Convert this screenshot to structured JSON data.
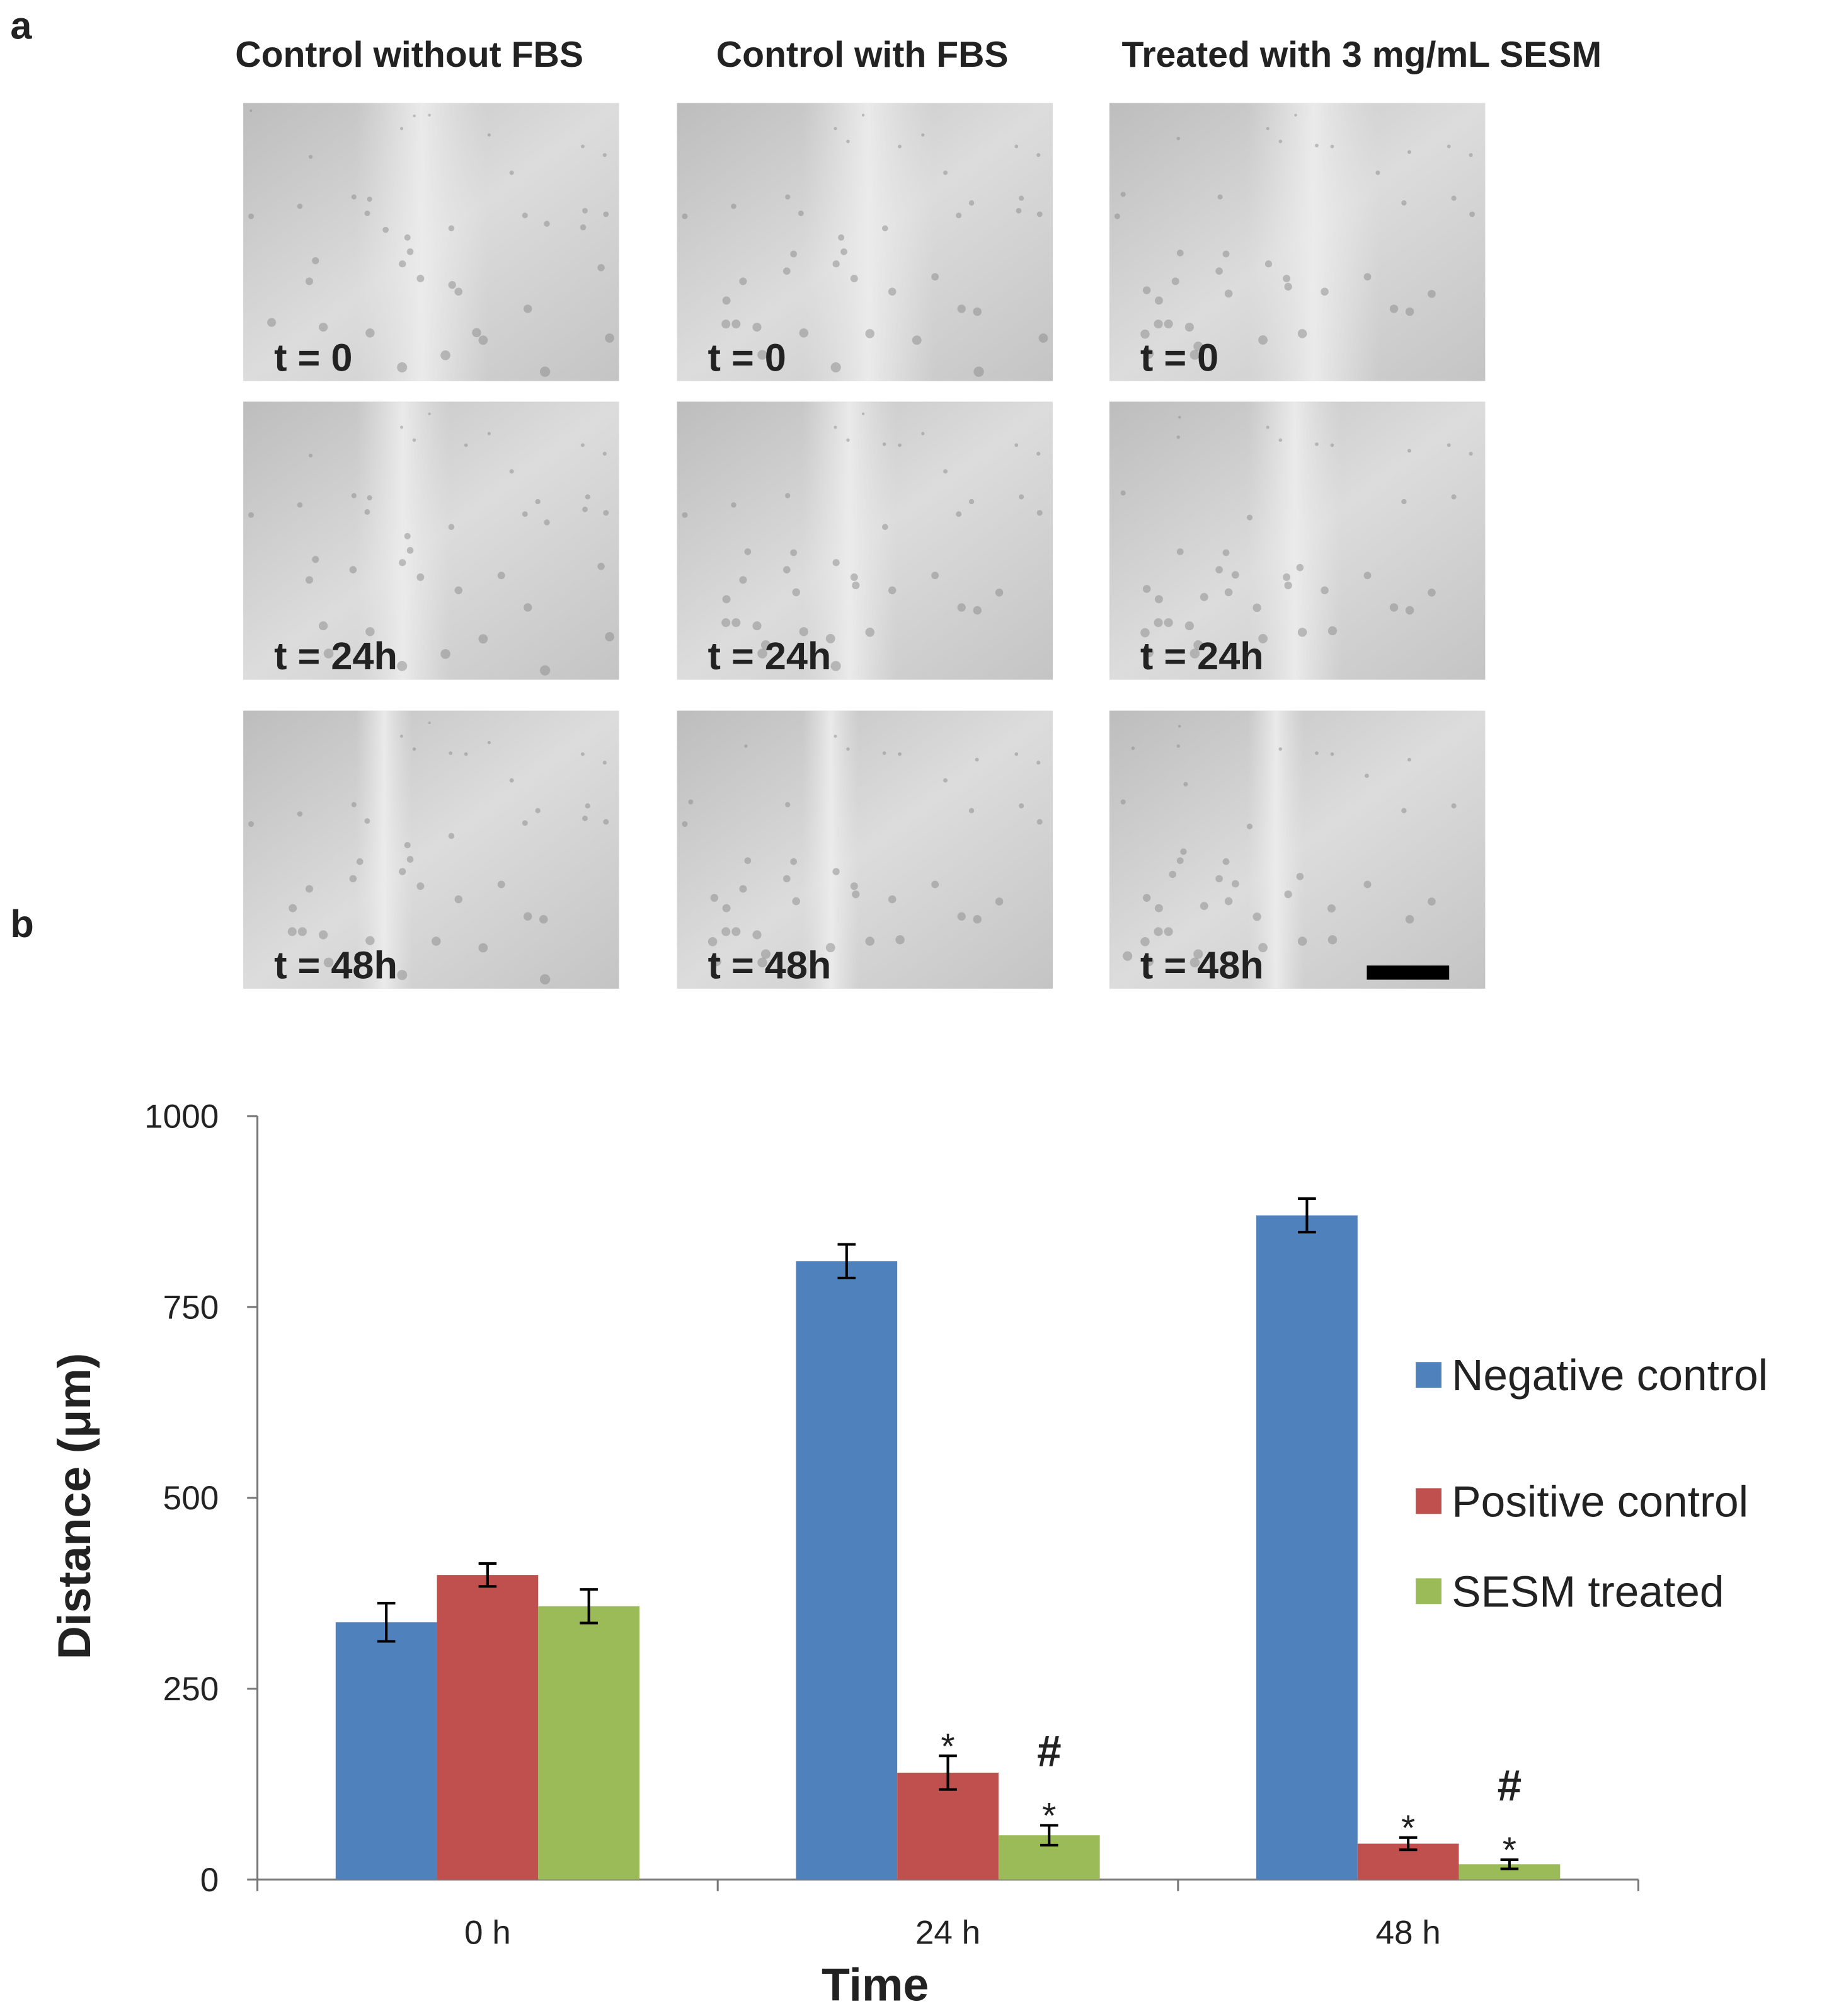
{
  "panel_a": {
    "label": "a",
    "columns": [
      "Control without FBS",
      "Control with FBS",
      "Treated with 3 mg/mL SESM"
    ],
    "images": [
      [
        "t = 0",
        "t = 0",
        "t = 0"
      ],
      [
        "t = 24h",
        "t = 24h",
        "t = 24h"
      ],
      [
        "t = 48h",
        "t = 48h",
        "t = 48h"
      ]
    ]
  },
  "panel_b": {
    "label": "b"
  },
  "chart_data": {
    "type": "bar",
    "x_label": "Time",
    "y_label": "Distance (μm)",
    "categories": [
      "0 h",
      "24 h",
      "48 h"
    ],
    "ylim": [
      0,
      1000
    ],
    "yticks": [
      0,
      250,
      500,
      750,
      1000
    ],
    "grid": false,
    "legend": "right",
    "series": [
      {
        "name": "Negative control",
        "color": "#4f81bd",
        "values": [
          337,
          810,
          870
        ],
        "errors": [
          25,
          22,
          22
        ],
        "markers": [
          null,
          null,
          null
        ]
      },
      {
        "name": "Positive control",
        "color": "#c0504d",
        "values": [
          399,
          140,
          47
        ],
        "errors": [
          15,
          22,
          8
        ],
        "markers": [
          null,
          [
            "*"
          ],
          [
            "*"
          ]
        ]
      },
      {
        "name": "SESM treated",
        "color": "#9bbb59",
        "values": [
          358,
          58,
          20
        ],
        "errors": [
          22,
          13,
          6
        ],
        "markers": [
          null,
          [
            "#",
            "*"
          ],
          [
            "#",
            "*"
          ]
        ]
      }
    ]
  }
}
